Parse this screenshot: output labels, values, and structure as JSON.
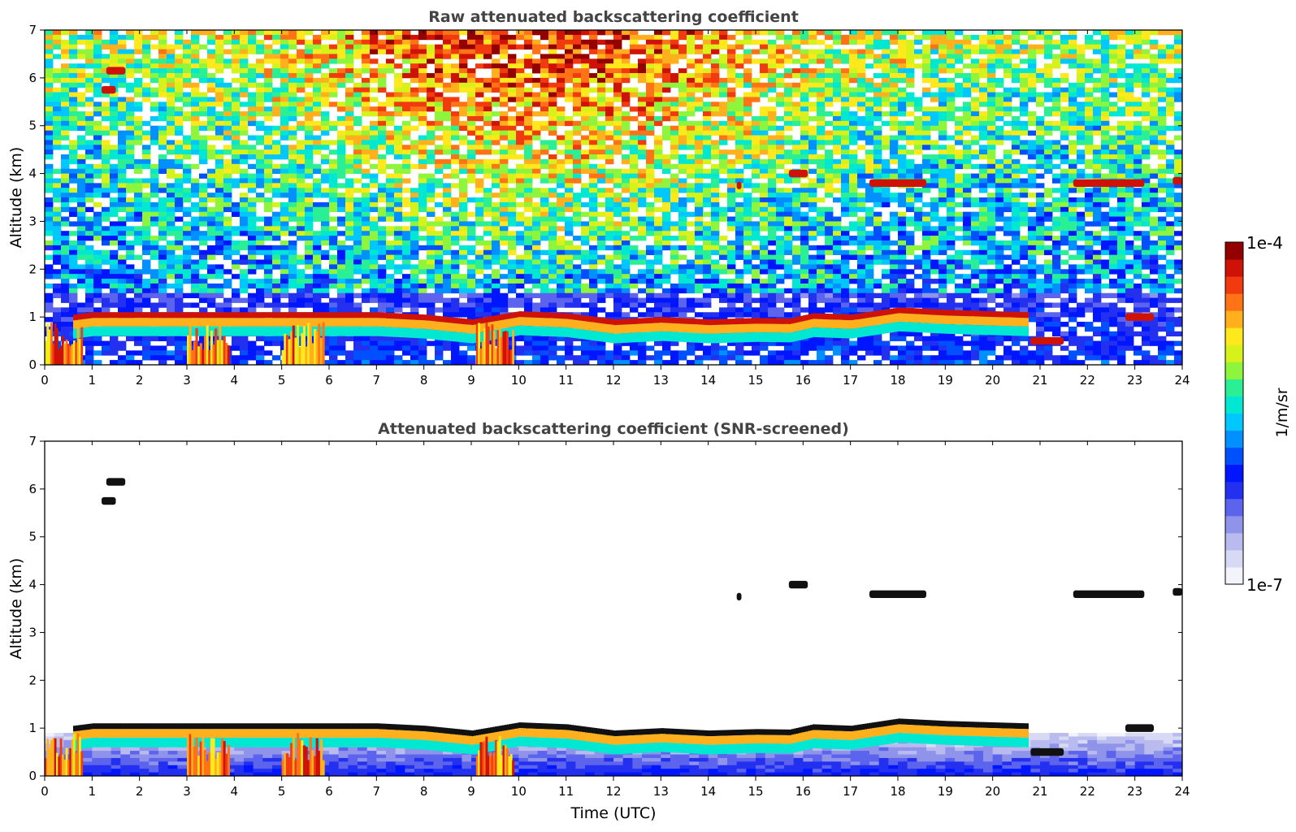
{
  "figure": {
    "colorbar": {
      "max_label": "1e-4",
      "min_label": "1e-7",
      "unit_label": "1/m/sr",
      "scale": "log",
      "range": [
        1e-07,
        0.0001
      ],
      "colors": [
        "#f3f3fc",
        "#d8d9f4",
        "#b9bbee",
        "#8f93ea",
        "#5c63ec",
        "#2330f0",
        "#0016ff",
        "#0050ff",
        "#0090ff",
        "#00c8ff",
        "#00e8d2",
        "#2aef95",
        "#8ef53c",
        "#d6f21a",
        "#ffe81c",
        "#ffb01c",
        "#ff7316",
        "#f13a0e",
        "#cf1208",
        "#920000"
      ]
    }
  },
  "chart_data": [
    {
      "type": "heatmap",
      "title": "Raw attenuated backscattering coefficient",
      "xlabel": "",
      "ylabel": "Altitude (km)",
      "xlim": [
        0,
        24
      ],
      "ylim": [
        0,
        7
      ],
      "xticks": [
        "0",
        "1",
        "2",
        "3",
        "4",
        "5",
        "6",
        "7",
        "8",
        "9",
        "10",
        "11",
        "12",
        "13",
        "14",
        "15",
        "16",
        "17",
        "18",
        "19",
        "20",
        "21",
        "22",
        "23",
        "24"
      ],
      "yticks": [
        "0",
        "1",
        "2",
        "3",
        "4",
        "5",
        "6",
        "7"
      ],
      "cloud_top_km": [
        [
          0.6,
          1.05
        ],
        [
          1.0,
          1.1
        ],
        [
          5.8,
          1.1
        ],
        [
          7.0,
          1.1
        ],
        [
          8.0,
          1.05
        ],
        [
          9.0,
          0.95
        ],
        [
          10.0,
          1.12
        ],
        [
          11.0,
          1.08
        ],
        [
          12.0,
          0.95
        ],
        [
          13.0,
          1.0
        ],
        [
          14.0,
          0.95
        ],
        [
          15.0,
          0.98
        ],
        [
          15.7,
          0.97
        ],
        [
          16.2,
          1.08
        ],
        [
          17.0,
          1.05
        ],
        [
          18.0,
          1.2
        ],
        [
          19.0,
          1.15
        ],
        [
          20.0,
          1.12
        ],
        [
          20.7,
          1.1
        ]
      ],
      "features_km": [
        {
          "t0": 1.3,
          "t1": 1.7,
          "alt": 6.15
        },
        {
          "t0": 1.2,
          "t1": 1.5,
          "alt": 5.75
        },
        {
          "t0": 15.7,
          "t1": 16.1,
          "alt": 4.0
        },
        {
          "t0": 21.7,
          "t1": 23.2,
          "alt": 3.8
        },
        {
          "t0": 22.8,
          "t1": 23.4,
          "alt": 1.0
        },
        {
          "t0": 20.8,
          "t1": 21.5,
          "alt": 0.5
        },
        {
          "t0": 17.4,
          "t1": 18.6,
          "alt": 3.8
        },
        {
          "t0": 23.8,
          "t1": 24.0,
          "alt": 3.85
        },
        {
          "t0": 14.6,
          "t1": 14.7,
          "alt": 3.75
        }
      ]
    },
    {
      "type": "heatmap",
      "title": "Attenuated backscattering coefficient (SNR-screened)",
      "xlabel": "Time (UTC)",
      "ylabel": "Altitude (km)",
      "xlim": [
        0,
        24
      ],
      "ylim": [
        0,
        7
      ],
      "xticks": [
        "0",
        "1",
        "2",
        "3",
        "4",
        "5",
        "6",
        "7",
        "8",
        "9",
        "10",
        "11",
        "12",
        "13",
        "14",
        "15",
        "16",
        "17",
        "18",
        "19",
        "20",
        "21",
        "22",
        "23",
        "24"
      ],
      "yticks": [
        "0",
        "1",
        "2",
        "3",
        "4",
        "5",
        "6",
        "7"
      ]
    }
  ]
}
